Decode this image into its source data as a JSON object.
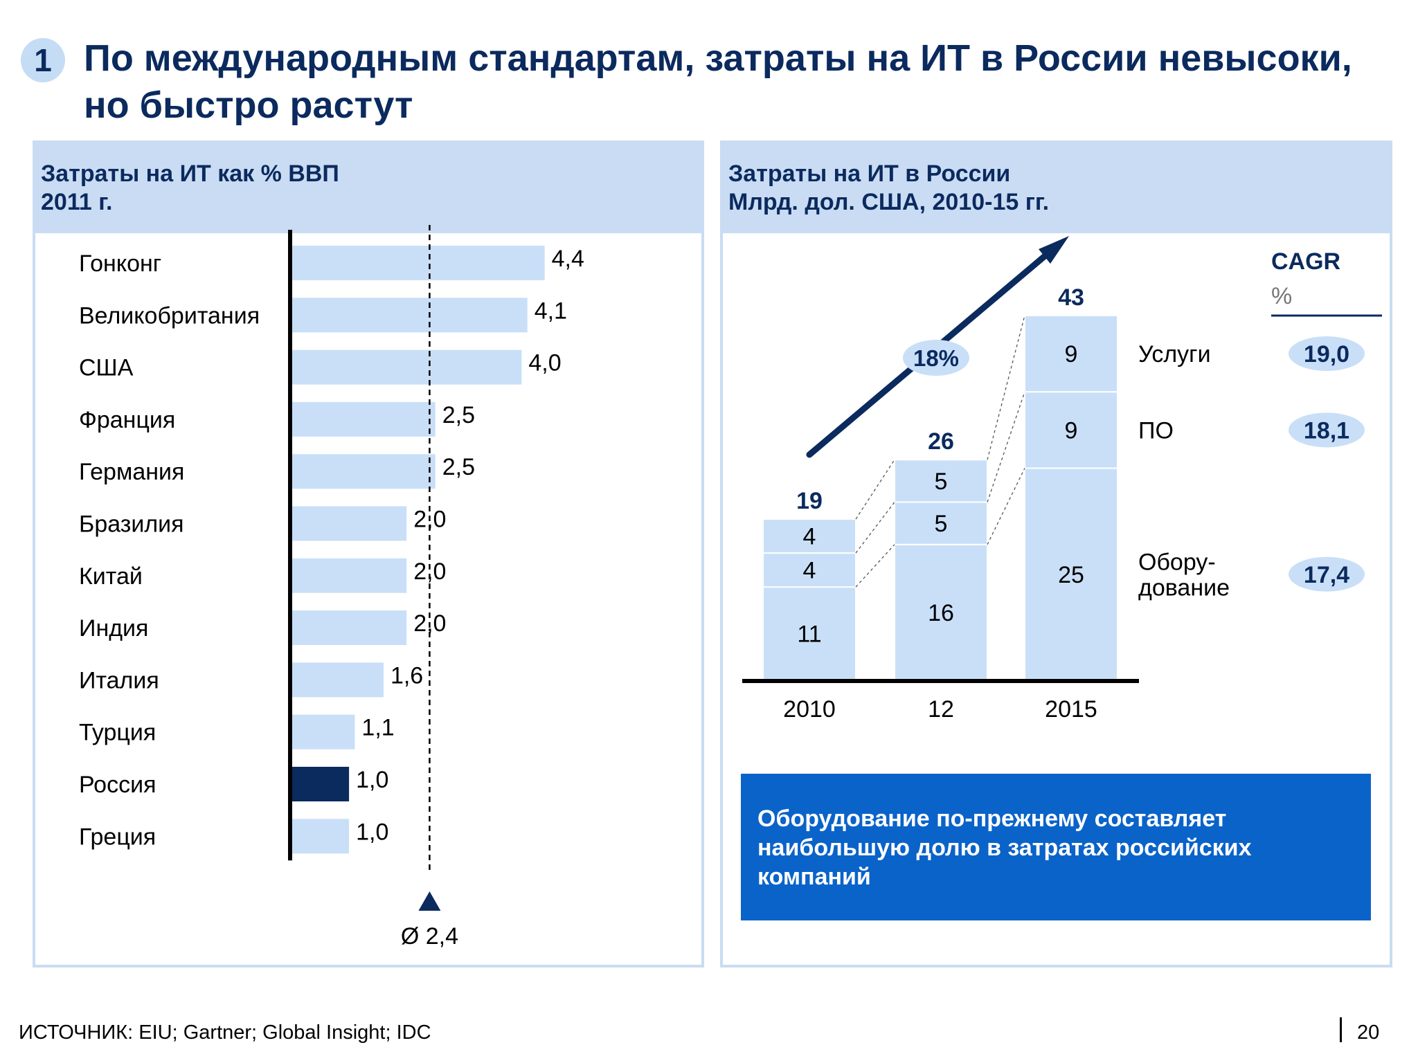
{
  "slide": {
    "number": "1",
    "title_line1": "По международным стандартам, затраты на ИТ в России невысоки,",
    "title_line2": "но быстро растут",
    "source": "ИСТОЧНИК: EIU; Gartner; Global Insight; IDC",
    "page": "20"
  },
  "left_panel": {
    "title_line1": "Затраты на ИТ как % ВВП",
    "title_line2": "2011 г."
  },
  "right_panel": {
    "title_line1": "Затраты на ИТ в России",
    "title_line2": "Млрд. дол. США, 2010-15 гг.",
    "callout_line1": "Оборудование по-прежнему составляет",
    "callout_line2": "наибольшую долю в затратах российских",
    "callout_line3": "компаний"
  },
  "colors": {
    "bar": "#c9dff8",
    "highlight": "#0b2a5e",
    "navy": "#0b2a5e",
    "header_bg": "#c9dcf3",
    "callout_bg": "#0a63c9"
  },
  "chart_data": [
    {
      "type": "bar",
      "orientation": "horizontal",
      "categories": [
        "Гонконг",
        "Великобритания",
        "США",
        "Франция",
        "Германия",
        "Бразилия",
        "Китай",
        "Индия",
        "Италия",
        "Турция",
        "Россия",
        "Греция"
      ],
      "values": [
        4.4,
        4.1,
        4.0,
        2.5,
        2.5,
        2.0,
        2.0,
        2.0,
        1.6,
        1.1,
        1.0,
        1.0
      ],
      "value_labels": [
        "4,4",
        "4,1",
        "4,0",
        "2,5",
        "2,5",
        "2,0",
        "2,0",
        "2,0",
        "1,6",
        "1,1",
        "1,0",
        "1,0"
      ],
      "highlight": "Россия",
      "average": 2.4,
      "average_label": "Ø 2,4",
      "xlim": [
        0,
        4.6
      ]
    },
    {
      "type": "bar",
      "stacked": true,
      "categories": [
        "2010",
        "12",
        "2015"
      ],
      "series": [
        {
          "name": "Обору-дование",
          "name_lines": [
            "Обору-",
            "дование"
          ],
          "values": [
            11,
            16,
            25
          ],
          "cagr": "17,4"
        },
        {
          "name": "ПО",
          "name_lines": [
            "ПО"
          ],
          "values": [
            4,
            5,
            9
          ],
          "cagr": "18,1"
        },
        {
          "name": "Услуги",
          "name_lines": [
            "Услуги"
          ],
          "values": [
            4,
            5,
            9
          ],
          "cagr": "19,0"
        }
      ],
      "totals": [
        19,
        26,
        43
      ],
      "growth_label": "18%",
      "cagr_title": "CAGR",
      "cagr_unit": "%",
      "ylim": [
        0,
        43
      ]
    }
  ]
}
